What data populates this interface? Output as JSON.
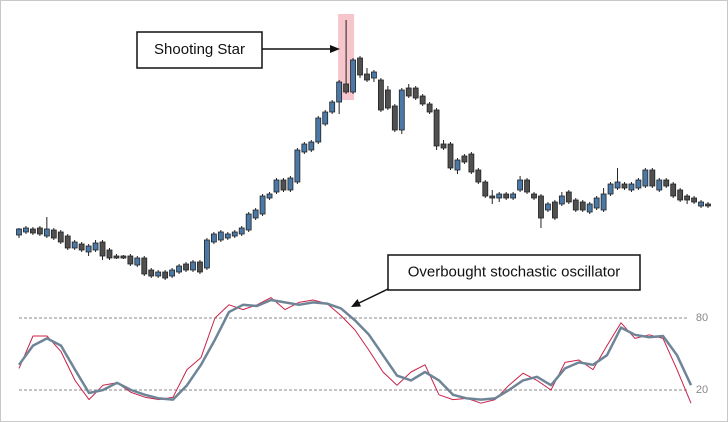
{
  "chart_data": [
    {
      "type": "candlestick",
      "annotations": [
        "Shooting Star"
      ],
      "up_color": "#4a79a8",
      "down_color": "#505050",
      "highlight_color": "#f6c6cc",
      "ylim": [
        0,
        300
      ],
      "open": [
        65,
        68,
        71,
        72,
        64,
        70,
        68,
        64,
        52,
        56,
        48,
        50,
        58,
        50,
        44,
        44,
        44,
        35,
        42,
        30,
        24,
        28,
        24,
        28,
        36,
        30,
        38,
        32,
        58,
        60,
        62,
        64,
        66,
        70,
        82,
        86,
        102,
        108,
        120,
        110,
        118,
        148,
        150,
        158,
        176,
        188,
        198,
        216,
        208,
        242,
        226,
        222,
        220,
        210,
        194,
        170,
        212,
        212,
        204,
        196,
        190,
        156,
        156,
        130,
        144,
        146,
        130,
        118,
        104,
        102,
        106,
        102,
        110,
        120,
        106,
        104,
        90,
        98,
        96,
        108,
        100,
        98,
        88,
        92,
        90,
        106,
        112,
        116,
        110,
        112,
        114,
        130,
        110,
        120,
        116,
        110,
        104,
        102,
        94,
        96
      ],
      "high": [
        72,
        74,
        73,
        74,
        83,
        72,
        70,
        66,
        60,
        58,
        56,
        60,
        60,
        52,
        46,
        45,
        46,
        44,
        44,
        32,
        30,
        30,
        32,
        36,
        38,
        40,
        40,
        62,
        68,
        70,
        68,
        70,
        74,
        88,
        92,
        106,
        108,
        122,
        122,
        124,
        152,
        158,
        160,
        184,
        190,
        200,
        220,
        280,
        242,
        244,
        232,
        230,
        222,
        214,
        196,
        212,
        216,
        214,
        206,
        198,
        192,
        160,
        158,
        142,
        146,
        148,
        132,
        120,
        110,
        108,
        108,
        108,
        124,
        122,
        108,
        106,
        98,
        100,
        108,
        110,
        102,
        100,
        98,
        104,
        112,
        118,
        132,
        118,
        118,
        122,
        132,
        132,
        122,
        122,
        118,
        112,
        106,
        104,
        100,
        98
      ],
      "low": [
        62,
        66,
        65,
        64,
        62,
        60,
        56,
        50,
        50,
        48,
        44,
        48,
        40,
        40,
        41,
        41,
        34,
        33,
        24,
        22,
        22,
        20,
        22,
        26,
        28,
        28,
        26,
        30,
        56,
        58,
        60,
        62,
        64,
        68,
        80,
        84,
        100,
        106,
        108,
        108,
        116,
        146,
        148,
        156,
        174,
        186,
        186,
        206,
        206,
        222,
        218,
        218,
        188,
        190,
        168,
        166,
        202,
        200,
        194,
        186,
        150,
        150,
        130,
        126,
        136,
        126,
        116,
        102,
        96,
        98,
        100,
        100,
        108,
        106,
        100,
        72,
        88,
        80,
        94,
        96,
        88,
        88,
        86,
        90,
        88,
        104,
        110,
        110,
        108,
        110,
        112,
        112,
        108,
        112,
        102,
        98,
        96,
        96,
        92,
        92
      ],
      "close": [
        71,
        72,
        67,
        66,
        71,
        62,
        58,
        52,
        58,
        50,
        54,
        57,
        44,
        42,
        42,
        42,
        36,
        42,
        26,
        24,
        28,
        22,
        30,
        34,
        30,
        38,
        28,
        60,
        66,
        68,
        66,
        68,
        72,
        86,
        90,
        104,
        106,
        120,
        110,
        122,
        150,
        156,
        158,
        182,
        188,
        198,
        218,
        208,
        240,
        225,
        220,
        228,
        190,
        192,
        170,
        210,
        204,
        202,
        196,
        188,
        154,
        152,
        132,
        140,
        138,
        128,
        118,
        104,
        102,
        106,
        102,
        106,
        120,
        108,
        102,
        82,
        96,
        82,
        104,
        98,
        90,
        90,
        96,
        102,
        106,
        116,
        118,
        112,
        116,
        120,
        130,
        114,
        120,
        114,
        104,
        100,
        100,
        98,
        98,
        94
      ]
    },
    {
      "type": "line",
      "annotations": [
        "Overbought stochastic oscillator"
      ],
      "ylim": [
        0,
        100
      ],
      "yticks": [
        20,
        80
      ],
      "grid": true,
      "grid_color": "#888888",
      "series": [
        {
          "color": "#c8234a",
          "width": 1,
          "values": [
            38,
            65,
            65,
            52,
            28,
            12,
            24,
            26,
            18,
            14,
            12,
            14,
            37,
            47,
            80,
            91,
            87,
            91,
            97,
            87,
            93,
            95,
            92,
            82,
            70,
            53,
            35,
            24,
            35,
            41,
            16,
            12,
            13,
            9,
            12,
            24,
            34,
            28,
            20,
            43,
            45,
            37,
            57,
            76,
            63,
            66,
            63,
            37,
            9
          ]
        },
        {
          "color": "#6e8597",
          "width": 2.5,
          "values": [
            41,
            57,
            63,
            57,
            37,
            17.5,
            20,
            26,
            20,
            16,
            13,
            12,
            24,
            41,
            62,
            85,
            91,
            90,
            95,
            93,
            91,
            93,
            92,
            88,
            78,
            66,
            49,
            32,
            28,
            35,
            28,
            16,
            13,
            12,
            13,
            20,
            28,
            31,
            24,
            38,
            43,
            41,
            49,
            72,
            66,
            64,
            65,
            49,
            24
          ]
        }
      ]
    }
  ]
}
